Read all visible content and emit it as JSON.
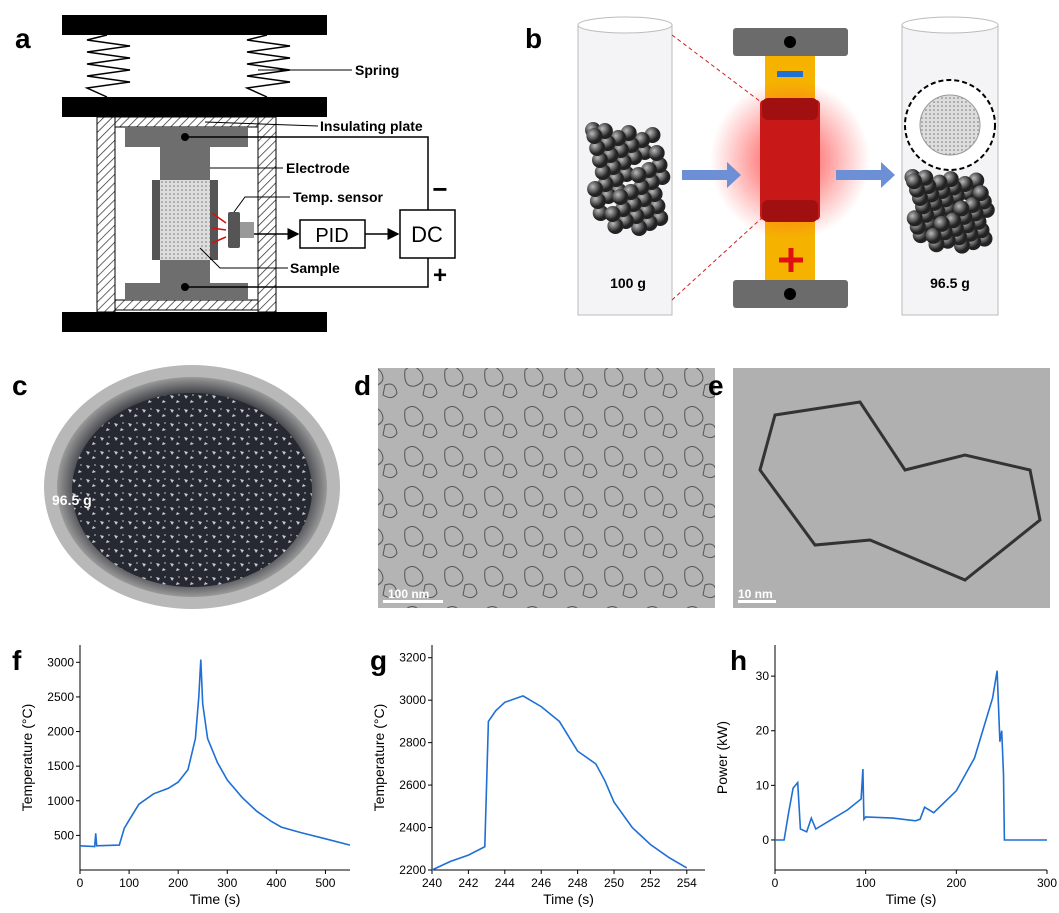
{
  "panel_labels": [
    "a",
    "b",
    "c",
    "d",
    "e",
    "f",
    "g",
    "h"
  ],
  "panel_a": {
    "spring": "Spring",
    "insulating_plate": "Insulating plate",
    "electrode": "Electrode",
    "temp_sensor": "Temp. sensor",
    "pid": "PID",
    "dc": "DC",
    "sample": "Sample",
    "minus": "−",
    "plus": "+"
  },
  "panel_b": {
    "before": "100 g",
    "after": "96.5 g"
  },
  "panel_c": {
    "mass": "96.5 g"
  },
  "panel_d": {
    "scale_bar": "100 nm"
  },
  "panel_e": {
    "scale_bar": "10 nm"
  },
  "chart_data": [
    {
      "type": "line",
      "x_label": "Time (s)",
      "y_label": "Temperature (°C)",
      "color": "#1f6fd4",
      "x": [
        0,
        30,
        32,
        34,
        80,
        90,
        100,
        120,
        150,
        180,
        200,
        220,
        235,
        242,
        246,
        250,
        260,
        280,
        300,
        330,
        360,
        390,
        410,
        450,
        500,
        550
      ],
      "values": [
        350,
        340,
        530,
        350,
        360,
        600,
        720,
        950,
        1100,
        1180,
        1270,
        1450,
        1900,
        2500,
        3040,
        2400,
        1900,
        1550,
        1300,
        1050,
        850,
        700,
        620,
        540,
        450,
        360
      ],
      "xlim": [
        0,
        550
      ],
      "xticks": [
        0,
        100,
        200,
        300,
        400,
        500
      ],
      "ylim": [
        0,
        3250
      ],
      "yticks": [
        500,
        1000,
        1500,
        2000,
        2500,
        3000
      ]
    },
    {
      "type": "line",
      "x_label": "Time (s)",
      "y_label": "Temperature (°C)",
      "color": "#1f6fd4",
      "x": [
        240,
        241,
        242,
        242.9,
        243.1,
        243.5,
        244,
        245,
        246,
        247,
        248,
        249,
        249.5,
        250,
        251,
        252,
        253,
        254
      ],
      "values": [
        2200,
        2240,
        2270,
        2310,
        2900,
        2950,
        2990,
        3020,
        2970,
        2900,
        2760,
        2700,
        2620,
        2520,
        2400,
        2320,
        2260,
        2210
      ],
      "xlim": [
        240,
        255
      ],
      "xticks": [
        240,
        242,
        244,
        246,
        248,
        250,
        252,
        254
      ],
      "ylim": [
        2200,
        3260
      ],
      "yticks": [
        2200,
        2400,
        2600,
        2800,
        3000,
        3200
      ]
    },
    {
      "type": "line",
      "x_label": "Time (s)",
      "y_label": "Power (kW)",
      "color": "#1f6fd4",
      "x": [
        0,
        10,
        15,
        20,
        25,
        28,
        35,
        40,
        45,
        60,
        80,
        95,
        97,
        98,
        100,
        130,
        155,
        160,
        165,
        175,
        200,
        220,
        240,
        245,
        248,
        250,
        252,
        253,
        300
      ],
      "values": [
        0,
        0,
        5,
        9.5,
        10.5,
        2,
        1.5,
        4,
        2,
        3.5,
        5.5,
        7.5,
        13,
        3.8,
        4.2,
        4,
        3.5,
        3.8,
        6,
        5,
        9,
        15,
        26,
        31,
        18,
        20,
        12,
        0,
        0
      ],
      "xlim": [
        0,
        300
      ],
      "xticks": [
        0,
        100,
        200,
        300
      ],
      "ylim": [
        -5.5,
        35.7
      ],
      "yticks": [
        0,
        10,
        20,
        30
      ]
    }
  ]
}
